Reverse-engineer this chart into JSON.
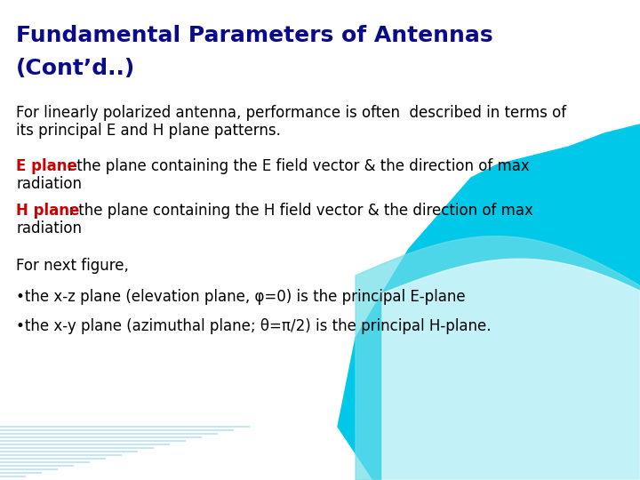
{
  "title_line1": "Fundamental Parameters of Antennas",
  "title_line2": "(Cont’d..)",
  "title_color": "#0A0A8B",
  "body_color": "#000000",
  "red_color": "#CC0000",
  "bg_color": "#FFFFFF",
  "para1_line1": "For linearly polarized antenna, performance is often  described in terms of",
  "para1_line2": "its principal E and H plane patterns.",
  "e_plane_label": "E plane",
  "e_plane_rest": " : the plane containing the E field vector & the direction of max",
  "e_plane_rest2": "radiation",
  "h_plane_label": "H plane",
  "h_plane_rest": " : the plane containing the H field vector & the direction of max",
  "h_plane_rest2": "radiation",
  "para3": "For next figure,",
  "bullet1": "•the x-z plane (elevation plane, φ=0) is the principal E-plane",
  "bullet2": "•the x-y plane (azimuthal plane; θ=π/2) is the principal H-plane.",
  "title_fontsize": 18,
  "body_fontsize": 12,
  "wave_color1": "#00C8E8",
  "wave_color2": "#6EDDE8",
  "wave_color3": "#B0EEF5",
  "stripe_color": "#A0D8E8"
}
